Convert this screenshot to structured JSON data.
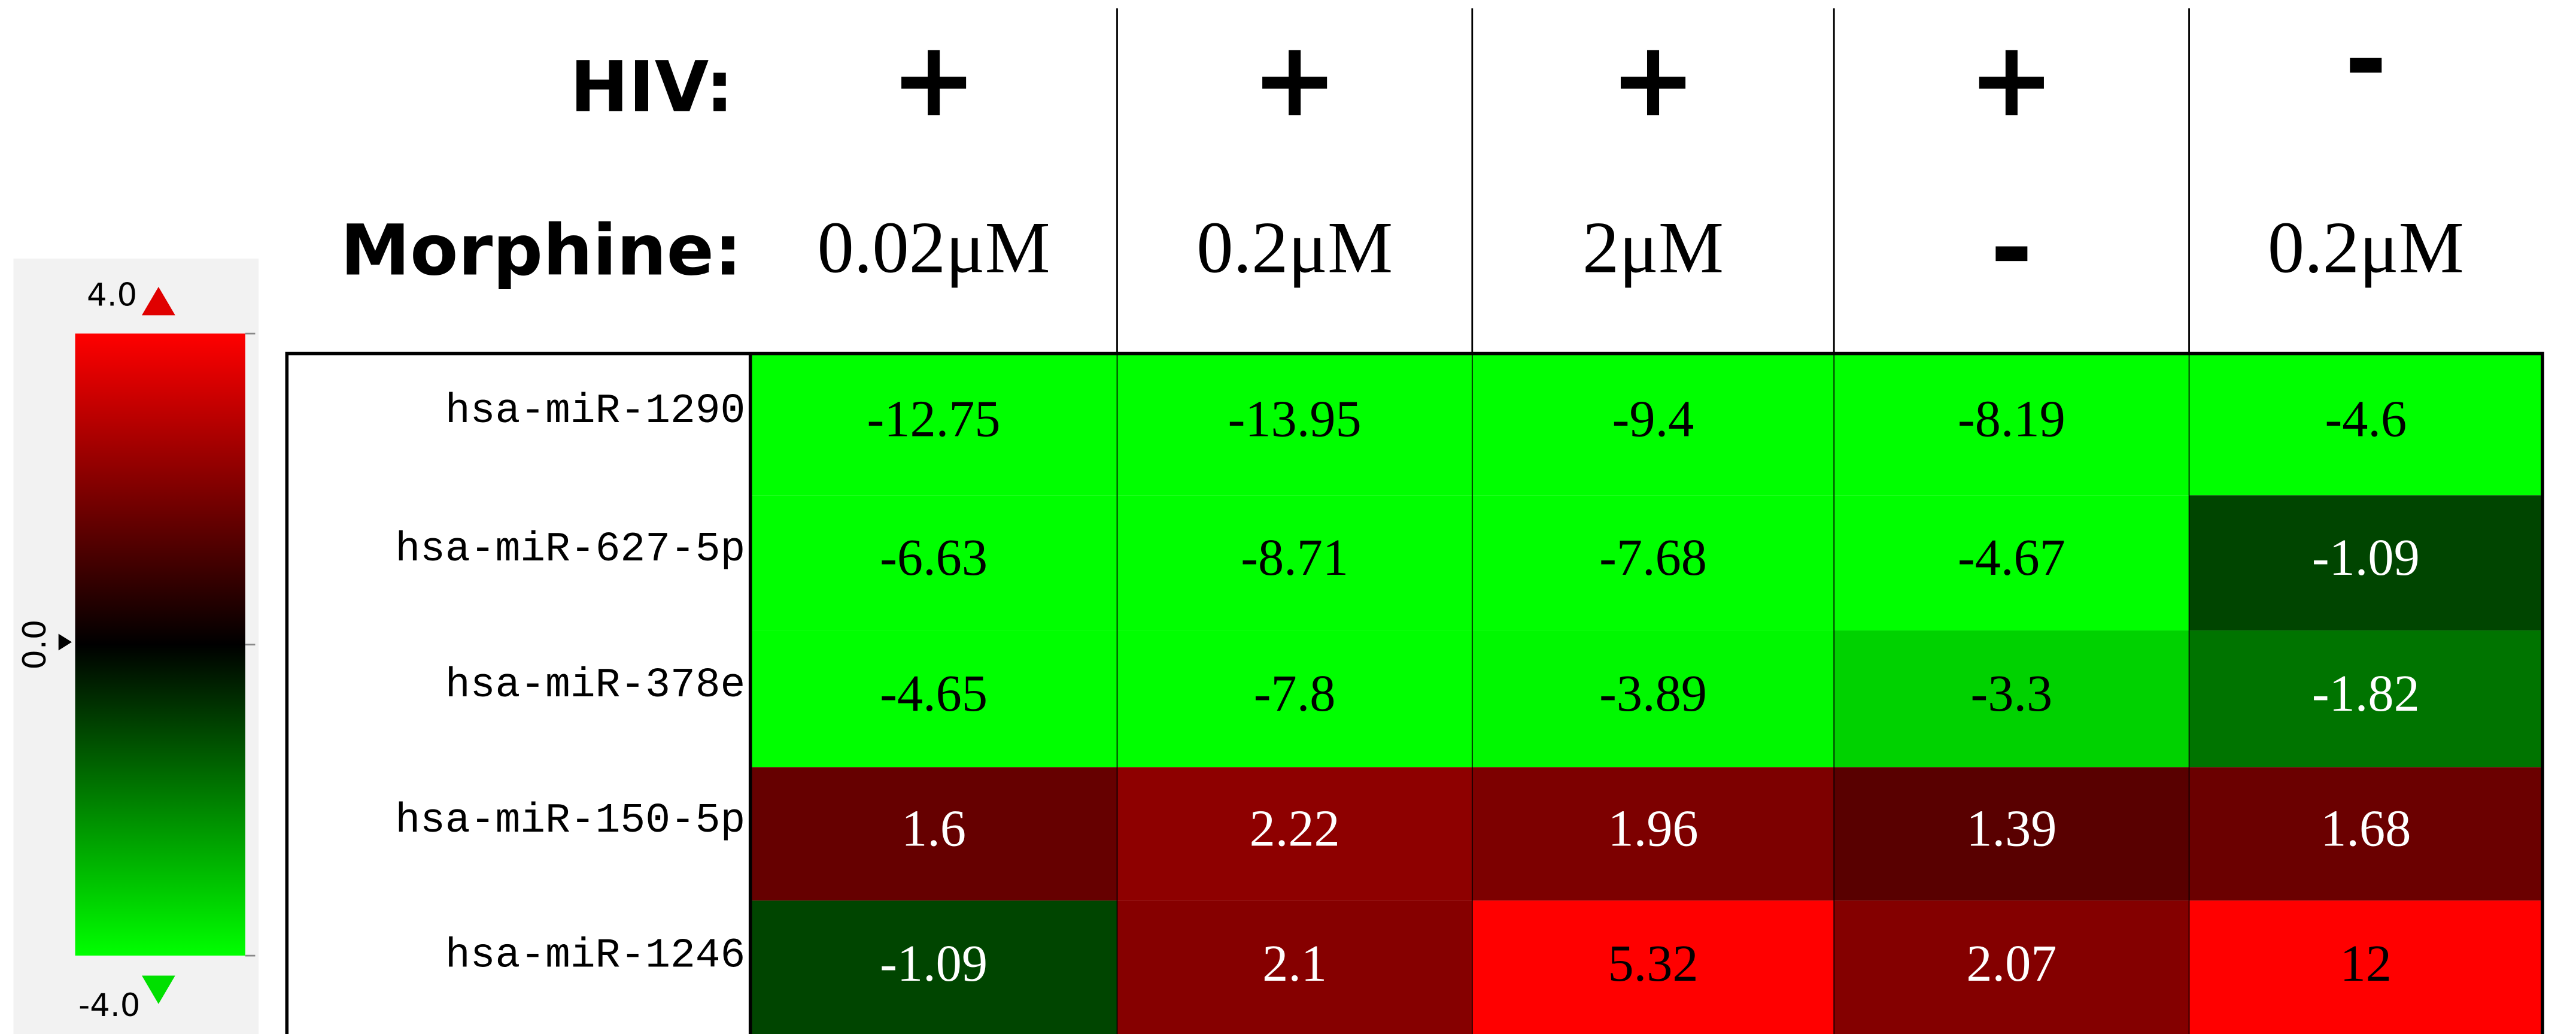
{
  "chart_data": {
    "type": "heatmap",
    "hiv_label": "HIV:",
    "morphine_label": "Morphine:",
    "columns": [
      {
        "hiv": "+",
        "morphine": "0.02μM"
      },
      {
        "hiv": "+",
        "morphine": "0.2μM"
      },
      {
        "hiv": "+",
        "morphine": "2μM"
      },
      {
        "hiv": "+",
        "morphine": "-"
      },
      {
        "hiv": "-",
        "morphine": "0.2μM"
      }
    ],
    "rows": [
      "hsa-miR-1290",
      "hsa-miR-627-5p",
      "hsa-miR-378e",
      "hsa-miR-150-5p",
      "hsa-miR-1246"
    ],
    "values": [
      [
        -12.75,
        -13.95,
        -9.4,
        -8.19,
        -4.6
      ],
      [
        -6.63,
        -8.71,
        -7.68,
        -4.67,
        -1.09
      ],
      [
        -4.65,
        -7.8,
        -3.89,
        -3.3,
        -1.82
      ],
      [
        1.6,
        2.22,
        1.96,
        1.39,
        1.68
      ],
      [
        -1.09,
        2.1,
        5.32,
        2.07,
        12
      ]
    ],
    "colorbar": {
      "lim": [
        -4,
        4
      ],
      "ticks": [
        {
          "value": 4,
          "label": "4.0"
        },
        {
          "value": 0,
          "label": "0.0"
        },
        {
          "value": -4,
          "label": "-4.0"
        }
      ],
      "low_color": "#00ff00",
      "mid_color": "#000000",
      "high_color": "#ff0000"
    }
  }
}
